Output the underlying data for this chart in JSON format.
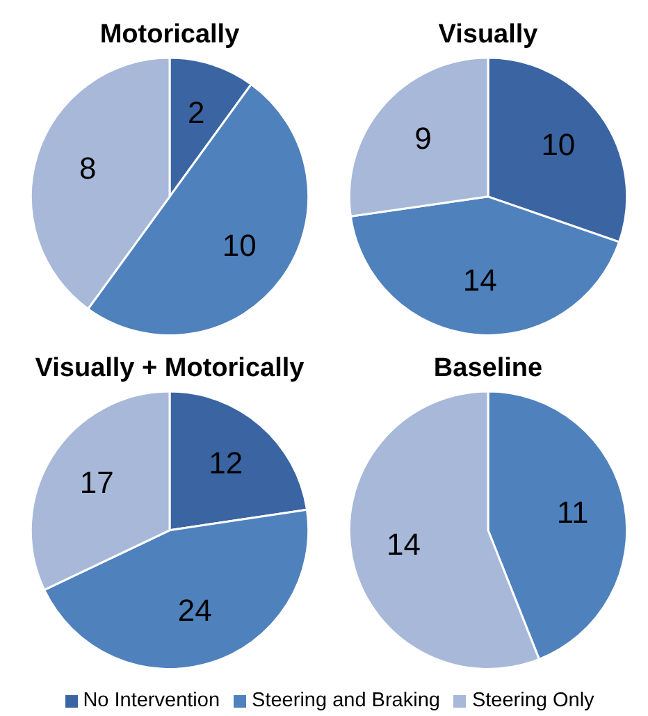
{
  "chart_data": [
    {
      "type": "pie",
      "title": "Motorically",
      "categories": [
        "No Intervention",
        "Steering and Braking",
        "Steering Only"
      ],
      "values": [
        2,
        10,
        8
      ],
      "colors": [
        "#3b64a2",
        "#4f81bd",
        "#a7b8d9"
      ],
      "data_labels": true,
      "legend": "bottom"
    },
    {
      "type": "pie",
      "title": "Visually",
      "categories": [
        null,
        null,
        null
      ],
      "values": [
        10,
        14,
        9
      ],
      "colors": [
        "#3b64a2",
        "#4f81bd",
        "#a7b8d9"
      ],
      "data_labels": true
    },
    {
      "type": "pie",
      "title": "Visually + Motorically",
      "categories": [
        null,
        null,
        null
      ],
      "values": [
        12,
        24,
        17
      ],
      "colors": [
        "#3b64a2",
        "#4f81bd",
        "#a7b8d9"
      ],
      "data_labels": true
    },
    {
      "type": "pie",
      "title": "Baseline",
      "categories": [
        null,
        null,
        null
      ],
      "values": [
        0,
        11,
        14
      ],
      "colors": [
        "#3b64a2",
        "#4f81bd",
        "#a7b8d9"
      ],
      "data_labels": true
    }
  ]
}
